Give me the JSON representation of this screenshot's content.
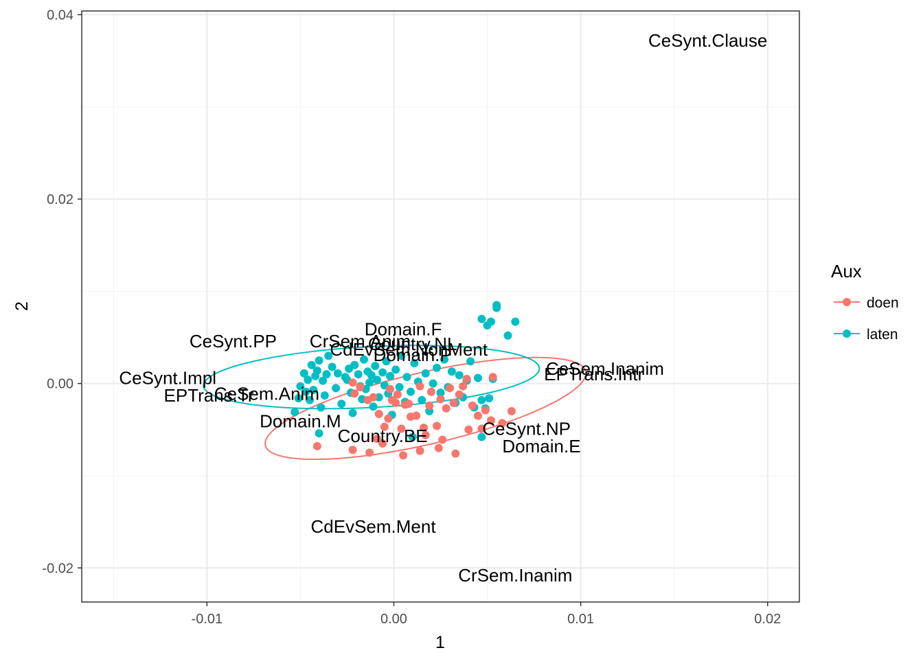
{
  "chart_data": {
    "type": "scatter",
    "title": "",
    "xlabel": "1",
    "ylabel": "2",
    "xlim": [
      -0.0167,
      0.0217
    ],
    "ylim": [
      -0.0237,
      0.0404
    ],
    "x_ticks": [
      {
        "value": -0.01,
        "label": "-0.01"
      },
      {
        "value": 0.0,
        "label": "0.00"
      },
      {
        "value": 0.01,
        "label": "0.01"
      },
      {
        "value": 0.02,
        "label": "0.02"
      }
    ],
    "y_ticks": [
      {
        "value": -0.02,
        "label": "-0.02"
      },
      {
        "value": 0.0,
        "label": "0.00"
      },
      {
        "value": 0.02,
        "label": "0.02"
      },
      {
        "value": 0.04,
        "label": "0.04"
      }
    ],
    "grid": true,
    "legend": {
      "title": "Aux",
      "position": "right",
      "entries": [
        {
          "name": "doen",
          "color": "#F8766D"
        },
        {
          "name": "laten",
          "color": "#00BFC4"
        }
      ]
    },
    "series": [
      {
        "name": "doen",
        "color": "#F8766D",
        "ellipse": {
          "cx": 0.0017,
          "cy": -0.0027,
          "rx": 0.0088,
          "ry": 0.0039,
          "rotation_deg": 13
        },
        "points": [
          [
            -0.0022,
            0.0001
          ],
          [
            -0.0021,
            -0.0011
          ],
          [
            -0.0018,
            -0.0004
          ],
          [
            -0.0014,
            -0.0018
          ],
          [
            -0.0011,
            -0.0015
          ],
          [
            -0.0008,
            -0.0033
          ],
          [
            -0.0005,
            -0.0047
          ],
          [
            -0.0003,
            -0.0038
          ],
          [
            -0.0002,
            -0.0006
          ],
          [
            -0.0001,
            -0.0018
          ],
          [
            0.0001,
            -0.0021
          ],
          [
            0.0002,
            -0.0012
          ],
          [
            0.0004,
            -0.0049
          ],
          [
            0.0006,
            -0.0023
          ],
          [
            0.0008,
            -0.0022
          ],
          [
            0.0009,
            -0.0036
          ],
          [
            0.0012,
            -0.0035
          ],
          [
            0.0014,
            -0.0003
          ],
          [
            0.0016,
            -0.0048
          ],
          [
            0.0017,
            -0.0056
          ],
          [
            0.0019,
            -0.0024
          ],
          [
            0.002,
            -0.0009
          ],
          [
            0.0023,
            -0.0046
          ],
          [
            0.0025,
            -0.0017
          ],
          [
            0.0026,
            -0.0061
          ],
          [
            0.0028,
            -0.0027
          ],
          [
            0.003,
            -0.0005
          ],
          [
            0.0032,
            -0.0021
          ],
          [
            0.0035,
            -0.0012
          ],
          [
            0.0037,
            -0.0003
          ],
          [
            0.0039,
            0.0005
          ],
          [
            0.0042,
            -0.0024
          ],
          [
            0.0045,
            -0.0035
          ],
          [
            0.0049,
            -0.0029
          ],
          [
            0.0052,
            -0.004
          ],
          [
            0.0053,
            0.0007
          ],
          [
            0.0058,
            -0.0043
          ],
          [
            0.0063,
            -0.003
          ],
          [
            -0.0041,
            -0.0068
          ],
          [
            -0.0022,
            -0.0072
          ],
          [
            -0.0013,
            -0.0075
          ],
          [
            -0.0006,
            -0.0065
          ],
          [
            0.0005,
            -0.0078
          ],
          [
            0.0014,
            -0.0073
          ],
          [
            0.0024,
            -0.007
          ],
          [
            0.0033,
            -0.0076
          ],
          [
            -0.0009,
            -0.006
          ],
          [
            0.004,
            -0.005
          ],
          [
            0.0047,
            -0.0049
          ]
        ]
      },
      {
        "name": "laten",
        "color": "#00BFC4",
        "ellipse": {
          "cx": -0.0012,
          "cy": 0.0007,
          "rx": 0.009,
          "ry": 0.0033,
          "rotation_deg": 3
        },
        "points": [
          [
            -0.0053,
            -0.0031
          ],
          [
            -0.0051,
            -0.0016
          ],
          [
            -0.005,
            -0.0003
          ],
          [
            -0.0048,
            0.0011
          ],
          [
            -0.0047,
            -0.0009
          ],
          [
            -0.0046,
            0.0004
          ],
          [
            -0.0045,
            -0.0018
          ],
          [
            -0.0044,
            0.002
          ],
          [
            -0.0043,
            -0.0007
          ],
          [
            -0.0042,
            0.0008
          ],
          [
            -0.0041,
            0.0014
          ],
          [
            -0.004,
            0.0025
          ],
          [
            -0.0039,
            -0.0026
          ],
          [
            -0.0038,
            0.0003
          ],
          [
            -0.0037,
            -0.0013
          ],
          [
            -0.0036,
            0.001
          ],
          [
            -0.0035,
            0.003
          ],
          [
            -0.0033,
            0.0018
          ],
          [
            -0.0031,
            -0.0005
          ],
          [
            -0.003,
            0.0011
          ],
          [
            -0.0028,
            -0.0022
          ],
          [
            -0.0026,
            0.0007
          ],
          [
            -0.0025,
            0.0004
          ],
          [
            -0.0024,
            0.0016
          ],
          [
            -0.0023,
            -0.001
          ],
          [
            -0.0022,
            -0.0032
          ],
          [
            -0.0021,
            0.002
          ],
          [
            -0.0019,
            0.001
          ],
          [
            -0.0018,
            -0.0003
          ],
          [
            -0.0017,
            -0.0017
          ],
          [
            -0.0016,
            0.0026
          ],
          [
            -0.0015,
            -0.0006
          ],
          [
            -0.0014,
            0.0013
          ],
          [
            -0.0013,
            0.0001
          ],
          [
            -0.0012,
            0.0009
          ],
          [
            -0.0011,
            -0.0025
          ],
          [
            -0.001,
            0.0019
          ],
          [
            -0.0009,
            0.0004
          ],
          [
            -0.0008,
            -0.0015
          ],
          [
            -0.0006,
            0.0012
          ],
          [
            -0.0005,
            -0.0002
          ],
          [
            -0.0004,
            0.0024
          ],
          [
            -0.0003,
            -0.0011
          ],
          [
            -0.0002,
            0.0008
          ],
          [
            -0.0001,
            -0.0034
          ],
          [
            0.0001,
            0.0015
          ],
          [
            0.0003,
            -0.0004
          ],
          [
            0.0004,
            0.003
          ],
          [
            0.0006,
            -0.002
          ],
          [
            0.0007,
            0.0007
          ],
          [
            0.0009,
            -0.0009
          ],
          [
            0.0011,
            0.0022
          ],
          [
            0.0013,
            0.0002
          ],
          [
            0.0015,
            -0.0018
          ],
          [
            0.0017,
            0.0011
          ],
          [
            0.0019,
            -0.003
          ],
          [
            0.0021,
            0.0
          ],
          [
            0.0023,
            0.0017
          ],
          [
            0.0025,
            -0.001
          ],
          [
            0.0027,
            0.0026
          ],
          [
            0.0029,
            -0.0004
          ],
          [
            0.0031,
            0.0013
          ],
          [
            0.0033,
            -0.0021
          ],
          [
            0.0035,
            0.0009
          ],
          [
            0.0037,
            -0.0015
          ],
          [
            0.0039,
            0.0003
          ],
          [
            0.0041,
            0.0024
          ],
          [
            0.0043,
            -0.0026
          ],
          [
            0.0045,
            0.0006
          ],
          [
            0.0047,
            -0.0018
          ],
          [
            0.0049,
            -0.0027
          ],
          [
            0.0051,
            -0.0016
          ],
          [
            0.0053,
            0.0005
          ],
          [
            0.001,
            -0.0058
          ],
          [
            -0.004,
            -0.0054
          ],
          [
            0.0047,
            -0.0058
          ],
          [
            0.0047,
            0.007
          ],
          [
            0.005,
            0.0063
          ],
          [
            0.0052,
            0.0067
          ],
          [
            0.0055,
            0.0082
          ],
          [
            0.0055,
            0.0085
          ],
          [
            0.0061,
            0.0052
          ],
          [
            0.0065,
            0.0067
          ]
        ]
      }
    ],
    "variable_labels": [
      {
        "text": "CeSynt.Clause",
        "x": 0.0168,
        "y": 0.0372
      },
      {
        "text": "CeSynt.PP",
        "x": -0.0086,
        "y": 0.0046
      },
      {
        "text": "CeSynt.Impl",
        "x": -0.0121,
        "y": 0.0006
      },
      {
        "text": "EPTrans.Tr",
        "x": -0.0099,
        "y": -0.0013
      },
      {
        "text": "CeSem.Anim",
        "x": -0.0068,
        "y": -0.0011
      },
      {
        "text": "Domain.M",
        "x": -0.005,
        "y": -0.0041
      },
      {
        "text": "Country.BE",
        "x": -0.0006,
        "y": -0.0057
      },
      {
        "text": "Domain.F",
        "x": 0.0005,
        "y": 0.0059
      },
      {
        "text": "CrSem.Anim",
        "x": -0.0018,
        "y": 0.0046
      },
      {
        "text": "Country.NL",
        "x": 0.001,
        "y": 0.0043
      },
      {
        "text": "CdEvSem.NonMent",
        "x": 0.0008,
        "y": 0.0037
      },
      {
        "text": "Domain.P",
        "x": 0.001,
        "y": 0.0031
      },
      {
        "text": "CeSem.Inanim",
        "x": 0.0113,
        "y": 0.0016
      },
      {
        "text": "EPTrans.Intr",
        "x": 0.0107,
        "y": 0.001
      },
      {
        "text": "CeSynt.NP",
        "x": 0.0071,
        "y": -0.0049
      },
      {
        "text": "Domain.E",
        "x": 0.0079,
        "y": -0.0068
      },
      {
        "text": "CdEvSem.Ment",
        "x": -0.0011,
        "y": -0.0155
      },
      {
        "text": "CrSem.Inanim",
        "x": 0.0065,
        "y": -0.0208
      }
    ]
  }
}
